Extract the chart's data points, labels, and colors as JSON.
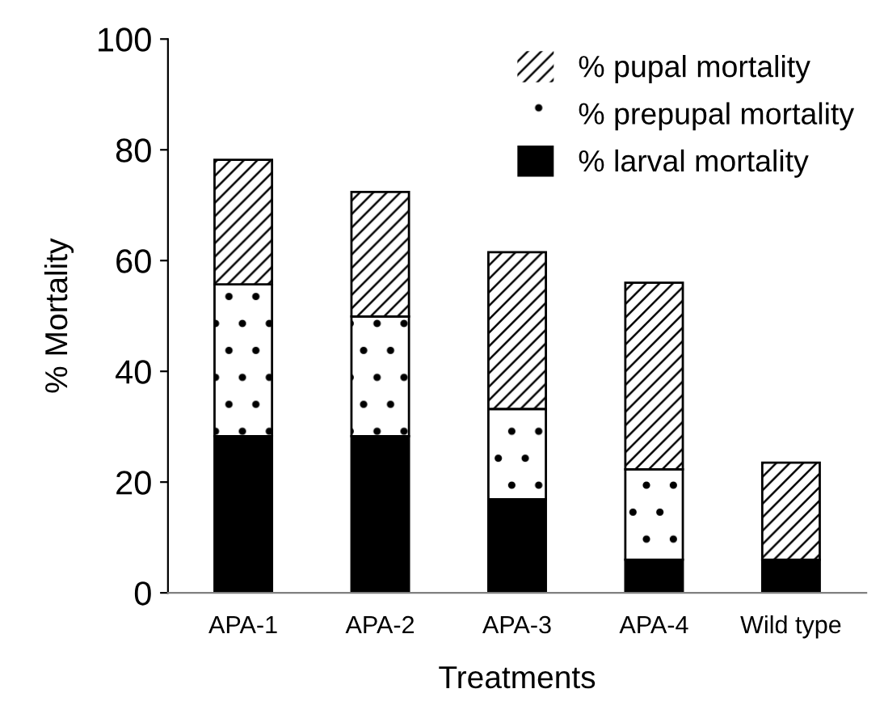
{
  "chart_data": {
    "type": "bar",
    "stacked": true,
    "xlabel": "Treatments",
    "ylabel": "% Mortality",
    "categories": [
      "APA-1",
      "APA-2",
      "APA-3",
      "APA-4",
      "Wild type"
    ],
    "series": [
      {
        "name": "% larval mortality",
        "color": "#000000",
        "values": [
          28.3,
          28.3,
          16.9,
          6.0,
          6.0
        ]
      },
      {
        "name": "% prepupal mortality",
        "color": "#ffffff",
        "values": [
          27.4,
          21.6,
          16.3,
          16.3,
          0
        ]
      },
      {
        "name": "% pupal mortality",
        "color": "#ffffff",
        "values": [
          22.5,
          22.5,
          28.3,
          33.7,
          17.5
        ]
      }
    ],
    "ylim": [
      0,
      100
    ],
    "yticks": [
      0,
      20,
      40,
      60,
      80,
      100
    ],
    "grid": false,
    "legend": "top right"
  }
}
